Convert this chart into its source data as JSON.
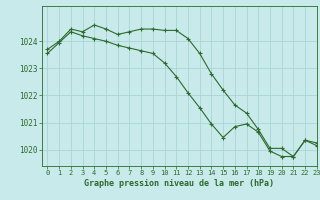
{
  "title": "Graphe pression niveau de la mer (hPa)",
  "background_color": "#c8eaea",
  "grid_color": "#aad4d4",
  "line_color": "#2d6a2d",
  "xlim": [
    -0.5,
    23
  ],
  "ylim": [
    1019.4,
    1025.3
  ],
  "yticks": [
    1020,
    1021,
    1022,
    1023,
    1024
  ],
  "xticks": [
    0,
    1,
    2,
    3,
    4,
    5,
    6,
    7,
    8,
    9,
    10,
    11,
    12,
    13,
    14,
    15,
    16,
    17,
    18,
    19,
    20,
    21,
    22,
    23
  ],
  "series1_x": [
    0,
    1,
    2,
    3,
    4,
    5,
    6,
    7,
    8,
    9,
    10,
    11,
    12,
    13,
    14,
    15,
    16,
    17,
    18,
    19,
    20,
    21,
    22,
    23
  ],
  "series1_y": [
    1023.7,
    1024.0,
    1024.45,
    1024.35,
    1024.6,
    1024.45,
    1024.25,
    1024.35,
    1024.45,
    1024.45,
    1024.4,
    1024.4,
    1024.1,
    1023.55,
    1022.8,
    1022.2,
    1021.65,
    1021.35,
    1020.75,
    1020.05,
    1020.05,
    1019.75,
    1020.35,
    1020.25
  ],
  "series2_x": [
    0,
    1,
    2,
    3,
    4,
    5,
    6,
    7,
    8,
    9,
    10,
    11,
    12,
    13,
    14,
    15,
    16,
    17,
    18,
    19,
    20,
    21,
    22,
    23
  ],
  "series2_y": [
    1023.55,
    1023.95,
    1024.35,
    1024.2,
    1024.1,
    1024.0,
    1023.85,
    1023.75,
    1023.65,
    1023.55,
    1023.2,
    1022.7,
    1022.1,
    1021.55,
    1020.95,
    1020.45,
    1020.85,
    1020.95,
    1020.65,
    1019.95,
    1019.75,
    1019.75,
    1020.35,
    1020.15
  ]
}
